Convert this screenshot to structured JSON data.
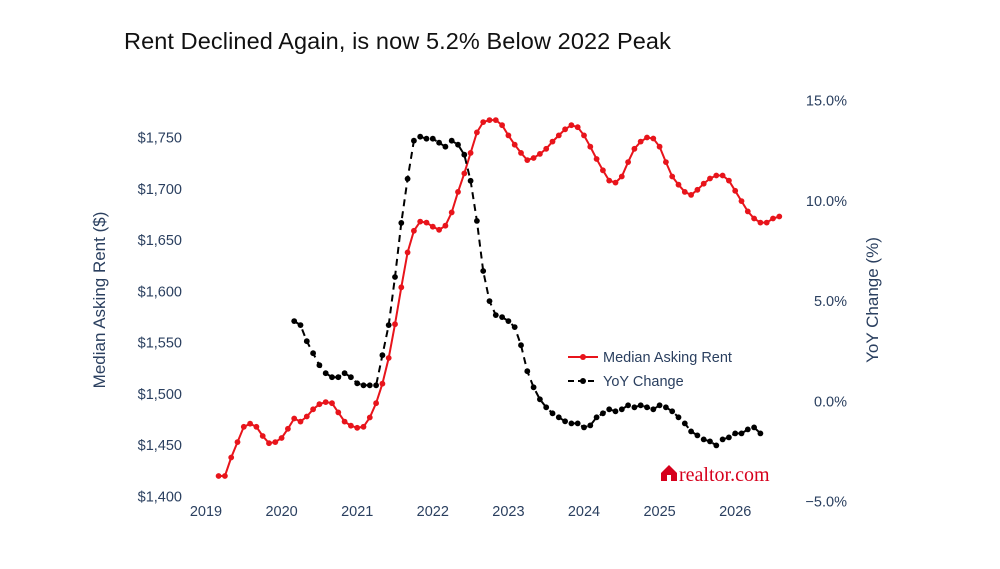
{
  "chart_data": {
    "type": "line",
    "title": "Rent Declined Again, is now 5.2% Below 2022 Peak",
    "y_left": {
      "label": "Median Asking Rent ($)",
      "range": [
        1400,
        1770
      ],
      "ticks": [
        1400,
        1450,
        1500,
        1550,
        1600,
        1650,
        1700,
        1750
      ],
      "tick_labels": [
        "$1,400",
        "$1,450",
        "$1,500",
        "$1,550",
        "$1,600",
        "$1,650",
        "$1,700",
        "$1,750"
      ]
    },
    "y_right": {
      "label": "YoY Change (%)",
      "range": [
        -5,
        15
      ],
      "ticks": [
        -5,
        0,
        5,
        10,
        15
      ],
      "tick_labels": [
        "−5.0%",
        "0.0%",
        "5.0%",
        "10.0%",
        "15.0%"
      ]
    },
    "x_axis": {
      "range": [
        2019,
        2026.5
      ],
      "ticks": [
        2019,
        2020,
        2021,
        2022,
        2023,
        2024,
        2025,
        2026
      ],
      "tick_labels": [
        "2019",
        "2020",
        "2021",
        "2022",
        "2023",
        "2024",
        "2025",
        "2026"
      ]
    },
    "grid": false,
    "legend_position": "right-middle",
    "series": [
      {
        "name": "Median Asking Rent",
        "color": "#e8141b",
        "style": "solid",
        "axis": "left",
        "x_start": "2019-03",
        "values": [
          1420,
          1420,
          1438,
          1453,
          1468,
          1471,
          1468,
          1459,
          1452,
          1453,
          1457,
          1466,
          1476,
          1473,
          1478,
          1485,
          1490,
          1492,
          1491,
          1482,
          1473,
          1469,
          1467,
          1468,
          1477,
          1491,
          1510,
          1535,
          1568,
          1604,
          1638,
          1659,
          1668,
          1667,
          1663,
          1660,
          1664,
          1677,
          1697,
          1715,
          1735,
          1755,
          1765,
          1767,
          1767,
          1762,
          1752,
          1743,
          1735,
          1728,
          1730,
          1734,
          1739,
          1746,
          1752,
          1758,
          1762,
          1760,
          1752,
          1741,
          1729,
          1718,
          1708,
          1706,
          1712,
          1726,
          1739,
          1746,
          1750,
          1749,
          1741,
          1726,
          1712,
          1704,
          1697,
          1694,
          1699,
          1705,
          1710,
          1713,
          1713,
          1708,
          1698,
          1688,
          1678,
          1671,
          1667,
          1667,
          1671,
          1673
        ]
      },
      {
        "name": "YoY Change",
        "color": "#000000",
        "style": "dash",
        "axis": "right",
        "x_start": "2020-03",
        "values": [
          4.0,
          3.8,
          3.0,
          2.4,
          1.8,
          1.4,
          1.2,
          1.2,
          1.4,
          1.2,
          0.9,
          0.8,
          0.8,
          0.8,
          2.3,
          3.8,
          6.2,
          8.9,
          11.1,
          13.0,
          13.2,
          13.1,
          13.1,
          12.9,
          12.7,
          13.0,
          12.8,
          12.3,
          11.0,
          9.0,
          6.5,
          5.0,
          4.3,
          4.2,
          4.0,
          3.7,
          2.8,
          1.5,
          0.7,
          0.1,
          -0.3,
          -0.6,
          -0.8,
          -1.0,
          -1.1,
          -1.1,
          -1.3,
          -1.2,
          -0.8,
          -0.6,
          -0.4,
          -0.5,
          -0.4,
          -0.2,
          -0.3,
          -0.2,
          -0.3,
          -0.4,
          -0.2,
          -0.3,
          -0.5,
          -0.8,
          -1.1,
          -1.5,
          -1.7,
          -1.9,
          -2.0,
          -2.2,
          -1.9,
          -1.8,
          -1.6,
          -1.6,
          -1.4,
          -1.3,
          -1.6
        ]
      }
    ],
    "watermark": "realtor.com"
  }
}
